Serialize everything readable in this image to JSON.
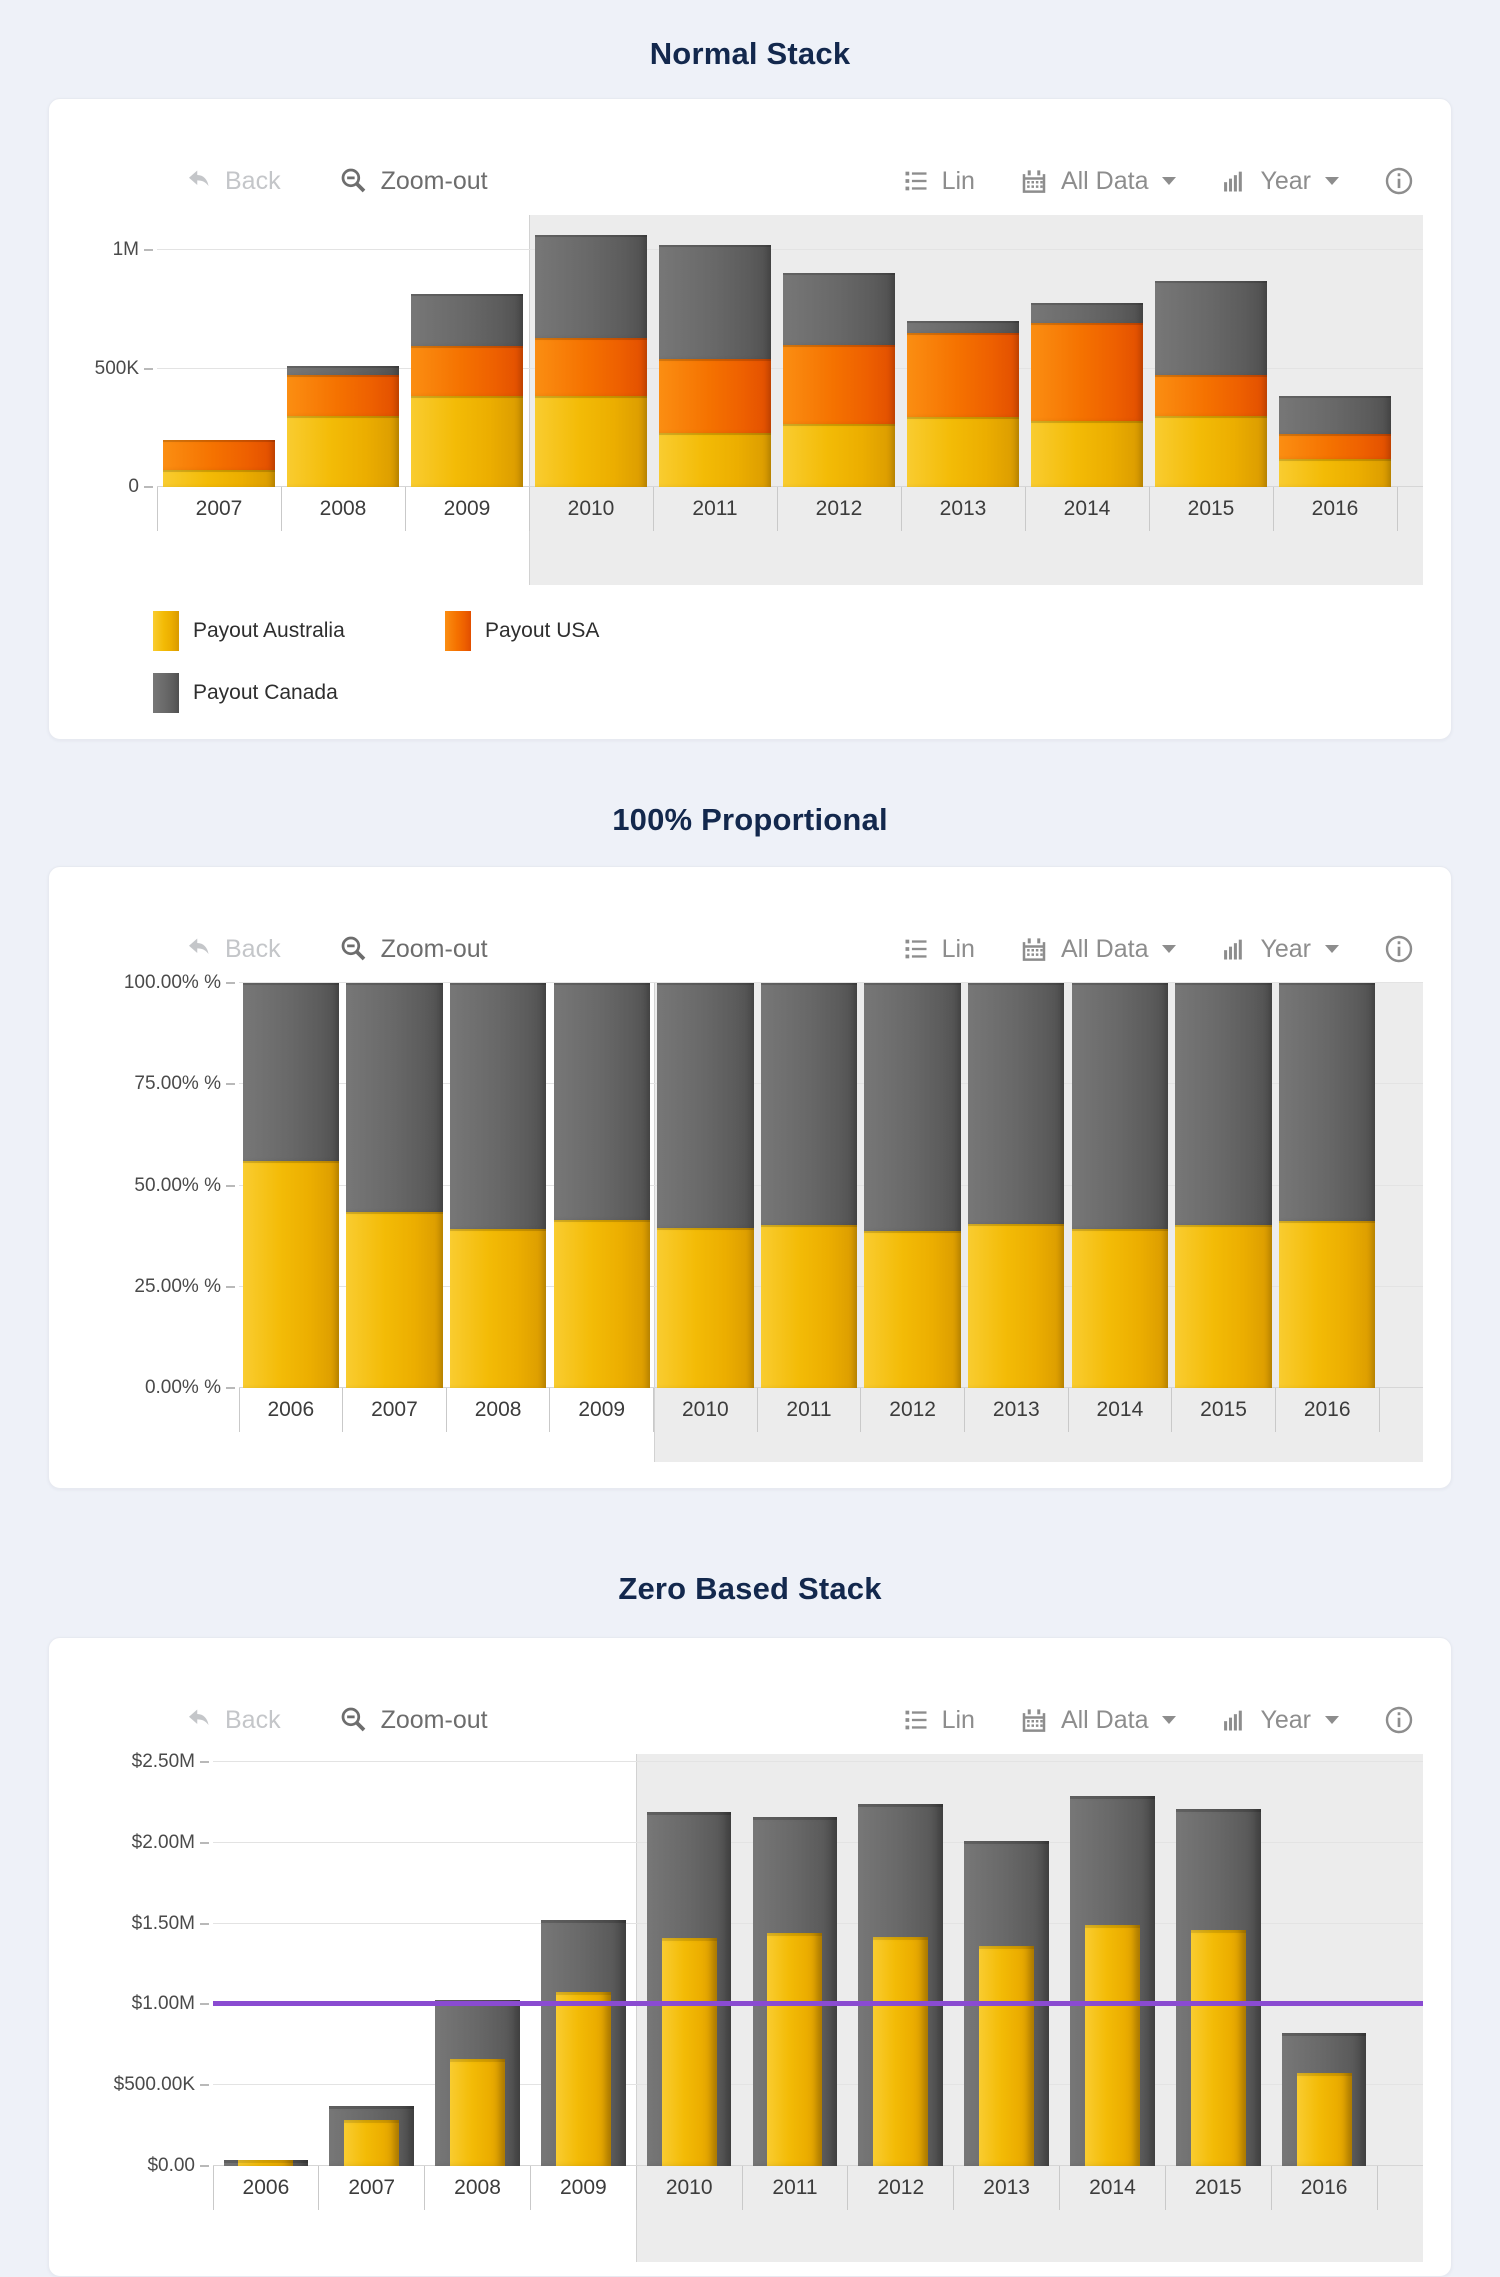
{
  "colors": {
    "australia": "#F0B90B",
    "usa": "#F26B00",
    "canada": "#616161",
    "refline": "#8A4BD1",
    "highlight_bg": "#ECECEC",
    "title": "#13284D"
  },
  "toolbar": {
    "back": "Back",
    "zoom_out": "Zoom-out",
    "lin": "Lin",
    "all_data": "All Data",
    "year": "Year"
  },
  "chart_data": [
    {
      "type": "bar",
      "stack": "normal",
      "title": "Normal Stack",
      "categories": [
        "2007",
        "2008",
        "2009",
        "2010",
        "2011",
        "2012",
        "2013",
        "2014",
        "2015",
        "2016"
      ],
      "series": [
        {
          "name": "Payout Australia",
          "key": "australia",
          "values": [
            70000,
            300000,
            385000,
            385000,
            230000,
            265000,
            295000,
            280000,
            300000,
            120000
          ]
        },
        {
          "name": "Payout USA",
          "key": "usa",
          "values": [
            130000,
            175000,
            210000,
            245000,
            310000,
            335000,
            355000,
            415000,
            175000,
            105000
          ]
        },
        {
          "name": "Payout Canada",
          "key": "canada",
          "values": [
            0,
            35000,
            220000,
            435000,
            485000,
            305000,
            50000,
            85000,
            395000,
            160000
          ]
        }
      ],
      "ylim": [
        0,
        1150000
      ],
      "yticks": [
        {
          "value": 0,
          "label": "0"
        },
        {
          "value": 500000,
          "label": "500K"
        },
        {
          "value": 1000000,
          "label": "1M"
        }
      ],
      "highlight_from": "2010",
      "legend_rows": [
        [
          "Payout Australia",
          "Payout USA"
        ],
        [
          "Payout Canada"
        ]
      ],
      "legend_position": "bottom-left",
      "grid": true
    },
    {
      "type": "bar",
      "stack": "percent",
      "title": "100% Proportional",
      "categories": [
        "2006",
        "2007",
        "2008",
        "2009",
        "2010",
        "2011",
        "2012",
        "2013",
        "2014",
        "2015",
        "2016"
      ],
      "series": [
        {
          "name": "Payout Australia",
          "key": "australia",
          "values": [
            56.0,
            43.5,
            39.3,
            41.5,
            39.5,
            40.2,
            38.8,
            40.5,
            39.3,
            40.2,
            41.2
          ]
        },
        {
          "name": "Payout Canada",
          "key": "canada",
          "values": [
            44.0,
            56.5,
            60.7,
            58.5,
            60.5,
            59.8,
            61.2,
            59.5,
            60.7,
            59.8,
            58.8
          ]
        }
      ],
      "ylim": [
        0,
        100
      ],
      "yticks": [
        {
          "value": 0,
          "label": "0.00% %"
        },
        {
          "value": 25,
          "label": "25.00% %"
        },
        {
          "value": 50,
          "label": "50.00% %"
        },
        {
          "value": 75,
          "label": "75.00% %"
        },
        {
          "value": 100,
          "label": "100.00% %"
        }
      ],
      "highlight_from": "2010",
      "grid": true
    },
    {
      "type": "bar",
      "stack": "zero-based-overlay",
      "title": "Zero Based Stack",
      "categories": [
        "2006",
        "2007",
        "2008",
        "2009",
        "2010",
        "2011",
        "2012",
        "2013",
        "2014",
        "2015",
        "2016"
      ],
      "series": [
        {
          "name": "Payout Canada",
          "key": "canada",
          "values": [
            40000,
            370000,
            1030000,
            1520000,
            2190000,
            2160000,
            2240000,
            2010000,
            2290000,
            2210000,
            825000
          ]
        },
        {
          "name": "Payout Australia",
          "key": "australia",
          "values": [
            35000,
            285000,
            660000,
            1080000,
            1410000,
            1440000,
            1420000,
            1360000,
            1490000,
            1460000,
            575000
          ]
        }
      ],
      "ylim": [
        0,
        2550000
      ],
      "yticks": [
        {
          "value": 0,
          "label": "$0.00"
        },
        {
          "value": 500000,
          "label": "$500.00K"
        },
        {
          "value": 1000000,
          "label": "$1.00M"
        },
        {
          "value": 1500000,
          "label": "$1.50M"
        },
        {
          "value": 2000000,
          "label": "$2.00M"
        },
        {
          "value": 2500000,
          "label": "$2.50M"
        }
      ],
      "refline": {
        "value": 1000000,
        "color": "#8A4BD1"
      },
      "highlight_from": "2010",
      "grid": true
    }
  ]
}
